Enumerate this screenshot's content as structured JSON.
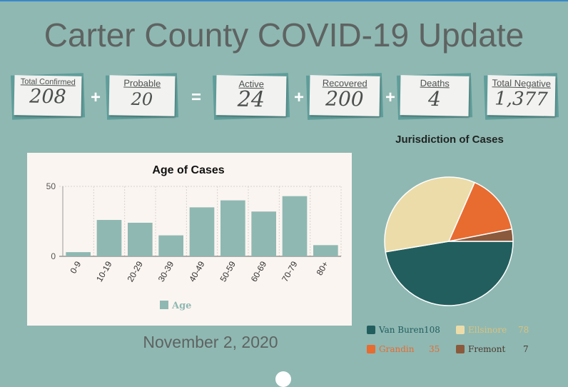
{
  "title": "Carter County COVID-19 Update",
  "date": "November 2, 2020",
  "stats": [
    {
      "label": "Total Confirmed",
      "value": "208"
    },
    {
      "label": "Probable",
      "value": "20"
    },
    {
      "label": "Active",
      "value": "24"
    },
    {
      "label": "Recovered",
      "value": "200"
    },
    {
      "label": "Deaths",
      "value": "4"
    },
    {
      "label": "Total Negative",
      "value": "1,377"
    }
  ],
  "operators": [
    "+",
    "=",
    "+",
    "+"
  ],
  "chart_data": [
    {
      "type": "bar",
      "title": "Age of Cases",
      "categories": [
        "0-9",
        "10-19",
        "20-29",
        "30-39",
        "40-49",
        "50-59",
        "60-69",
        "70-79",
        "80+"
      ],
      "series": [
        {
          "name": "Age",
          "values": [
            3,
            26,
            24,
            15,
            35,
            40,
            32,
            43,
            8
          ]
        }
      ],
      "yticks": [
        0,
        50
      ],
      "ylim": [
        0,
        50
      ],
      "grid": true,
      "legend": "bottom",
      "color": "#8fb8b2"
    },
    {
      "type": "pie",
      "title": "Jurisdiction of Cases",
      "slices": [
        {
          "name": "Van Buren",
          "value": 108,
          "color": "#225e5e"
        },
        {
          "name": "Ellsinore",
          "value": 78,
          "color": "#ecdcaa"
        },
        {
          "name": "Grandin",
          "value": 35,
          "color": "#e86b30"
        },
        {
          "name": "Fremont",
          "value": 7,
          "color": "#8b5a3c"
        }
      ],
      "legend": "bottom"
    }
  ]
}
